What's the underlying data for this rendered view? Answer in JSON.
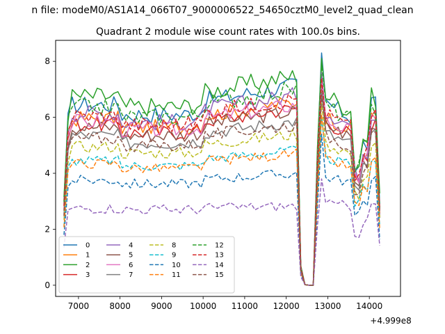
{
  "chart_data": {
    "type": "line",
    "suptitle": "n file: modeM0/AS1A14_066T07_9000006522_54650cztM0_level2_quad_clean",
    "title": "Quadrant 2 module wise count rates with 100.0s bins.",
    "xlabel": "",
    "ylabel": "",
    "x_offset_label": "+4.999e8",
    "xlim": [
      6450,
      14750
    ],
    "ylim": [
      -0.4,
      8.75
    ],
    "xticks": [
      7000,
      8000,
      9000,
      10000,
      11000,
      12000,
      13000,
      14000
    ],
    "yticks": [
      0,
      2,
      4,
      6,
      8
    ],
    "x_start": 6650,
    "x_step": 100,
    "n_points": 77,
    "legend_location": "lower left",
    "legend_columns": 4,
    "series": [
      {
        "name": "0",
        "color": "#1f77b4",
        "dash": "solid",
        "base": 6.7,
        "peak": 8.3
      },
      {
        "name": "1",
        "color": "#ff7f0e",
        "dash": "solid",
        "base": 6.2,
        "peak": 7.5
      },
      {
        "name": "2",
        "color": "#2ca02c",
        "dash": "solid",
        "base": 7.0,
        "peak": 8.1
      },
      {
        "name": "3",
        "color": "#d62728",
        "dash": "solid",
        "base": 6.0,
        "peak": 7.3
      },
      {
        "name": "4",
        "color": "#9467bd",
        "dash": "solid",
        "base": 6.4,
        "peak": 7.6
      },
      {
        "name": "5",
        "color": "#8c564b",
        "dash": "solid",
        "base": 5.9,
        "peak": 7.2
      },
      {
        "name": "6",
        "color": "#e377c2",
        "dash": "solid",
        "base": 6.1,
        "peak": 7.3
      },
      {
        "name": "7",
        "color": "#7f7f7f",
        "dash": "solid",
        "base": 5.6,
        "peak": 6.9
      },
      {
        "name": "8",
        "color": "#bcbd22",
        "dash": "dashed",
        "base": 5.2,
        "peak": 6.5
      },
      {
        "name": "9",
        "color": "#17becf",
        "dash": "dashed",
        "base": 4.7,
        "peak": 6.0
      },
      {
        "name": "10",
        "color": "#1f77b4",
        "dash": "dashed",
        "base": 4.0,
        "peak": 5.4
      },
      {
        "name": "11",
        "color": "#ff7f0e",
        "dash": "dashed",
        "base": 4.6,
        "peak": 6.1
      },
      {
        "name": "12",
        "color": "#2ca02c",
        "dash": "dashed",
        "base": 6.6,
        "peak": 7.9
      },
      {
        "name": "13",
        "color": "#d62728",
        "dash": "dashed",
        "base": 6.3,
        "peak": 7.4
      },
      {
        "name": "14",
        "color": "#9467bd",
        "dash": "dashed",
        "base": 3.0,
        "peak": 3.8
      },
      {
        "name": "15",
        "color": "#8c564b",
        "dash": "dashed",
        "base": 5.5,
        "peak": 6.8
      }
    ]
  }
}
